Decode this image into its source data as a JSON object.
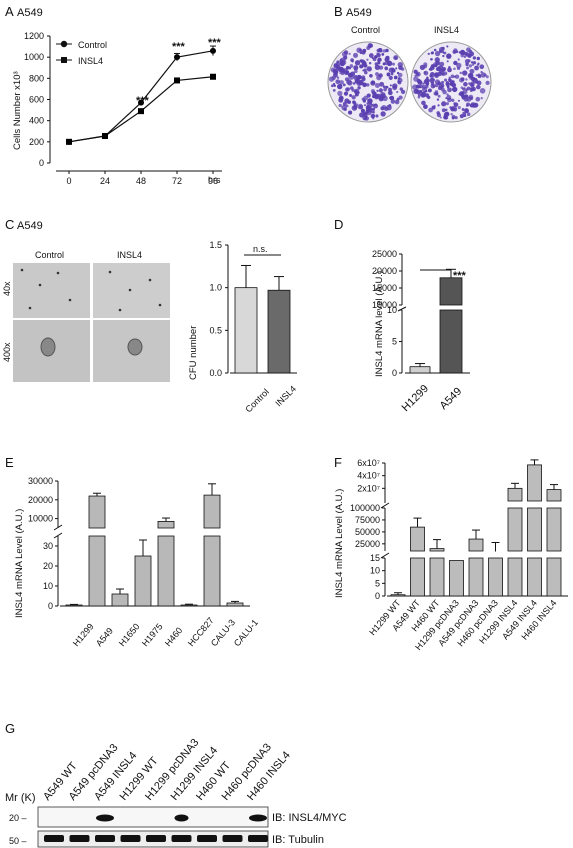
{
  "panels": {
    "A": {
      "label": "A",
      "cell": "A549",
      "ylabel": "Cells Number x10³",
      "xunit": "hrs",
      "legend": [
        "Control",
        "INSL4"
      ],
      "sig": [
        "***",
        "***",
        "***"
      ]
    },
    "B": {
      "label": "B",
      "cell": "A549",
      "dishes": [
        "Control",
        "INSL4"
      ]
    },
    "C": {
      "label": "C",
      "cell": "A549",
      "cols": [
        "Control",
        "INSL4"
      ],
      "rows": [
        "40x",
        "400x"
      ],
      "bar_ylabel": "CFU number",
      "bar_cats": [
        "Control",
        "INSL4"
      ],
      "sig": "n.s."
    },
    "D": {
      "label": "D",
      "ylabel": "INSL4 mRNA level (A.U.)",
      "cats": [
        "H1299",
        "A549"
      ],
      "sig": "***"
    },
    "E": {
      "label": "E",
      "ylabel": "INSL4 mRNA Level (A.U.)",
      "cats": [
        "H1299",
        "A549",
        "H1650",
        "H1975",
        "H460",
        "HCC827",
        "CALU-3",
        "CALU-1"
      ]
    },
    "F": {
      "label": "F",
      "ylabel": "INSL4 mRNA Level (A.U.)",
      "cats": [
        "H1299 WT",
        "A549 WT",
        "H460 WT",
        "H1299 pcDNA3",
        "A549 pcDNA3",
        "H460 pcDNA3",
        "H1299 INSL4",
        "A549 INSL4",
        "H460 INSL4"
      ]
    },
    "G": {
      "label": "G",
      "lanes": [
        "A549 WT",
        "A549 pcDNA3",
        "A549 INSL4",
        "H1299 WT",
        "H1299 pcDNA3",
        "H1299 INSL4",
        "H460 WT",
        "H460 pcDNA3",
        "H460 INSL4"
      ],
      "mr": "Mr (K)",
      "markers": [
        "20 –",
        "50 –"
      ],
      "blots": [
        "IB: INSL4/MYC",
        "IB: Tubulin"
      ]
    }
  },
  "chart_data": [
    {
      "type": "line",
      "panel": "A",
      "x": [
        0,
        24,
        48,
        72,
        96
      ],
      "xlabel": "hrs",
      "ylabel": "Cells Number x10³",
      "ylim": [
        0,
        1200
      ],
      "yticks": [
        0,
        200,
        400,
        600,
        800,
        1000,
        1200
      ],
      "series": [
        {
          "name": "Control",
          "values": [
            200,
            255,
            570,
            1000,
            1060
          ]
        },
        {
          "name": "INSL4",
          "values": [
            200,
            255,
            490,
            780,
            815
          ]
        }
      ]
    },
    {
      "type": "bar",
      "panel": "C",
      "categories": [
        "Control",
        "INSL4"
      ],
      "values": [
        1.0,
        0.97
      ],
      "errors": [
        0.26,
        0.16
      ],
      "ylabel": "CFU number",
      "ylim": [
        0,
        1.5
      ],
      "yticks": [
        "0.0",
        "0.5",
        "1.0",
        "1.5"
      ]
    },
    {
      "type": "bar",
      "panel": "D",
      "categories": [
        "H1299",
        "A549"
      ],
      "values": [
        1.0,
        18000
      ],
      "errors": [
        0.5,
        2500
      ],
      "ylabel": "INSL4 mRNA level (A.U.)",
      "yticks": [
        "0",
        "5",
        "10",
        "10000",
        "15000",
        "20000",
        "25000"
      ]
    },
    {
      "type": "bar",
      "panel": "E",
      "categories": [
        "H1299",
        "A549",
        "H1650",
        "H1975",
        "H460",
        "HCC827",
        "CALU-3",
        "CALU-1"
      ],
      "values": [
        0.5,
        22000,
        6,
        25,
        8500,
        0.5,
        22500,
        1.5
      ],
      "errors": [
        0.3,
        1500,
        2.5,
        8,
        1800,
        0.4,
        6000,
        0.8
      ],
      "ylabel": "INSL4 mRNA Level (A.U.)",
      "yticks": [
        "0",
        "10",
        "20",
        "30",
        "10000",
        "20000",
        "30000"
      ]
    },
    {
      "type": "bar",
      "panel": "F",
      "categories": [
        "H1299 WT",
        "A549 WT",
        "H460 WT",
        "H1299 pcDNA3",
        "A549 pcDNA3",
        "H460 pcDNA3",
        "H1299 INSL4",
        "A549 INSL4",
        "H460 INSL4"
      ],
      "values": [
        0.5,
        60000,
        15000,
        14,
        35000,
        9000,
        20000000,
        57000000,
        18000000
      ],
      "ylabel": "INSL4 mRNA Level (A.U.)",
      "yticks": [
        "0",
        "5",
        "10",
        "15",
        "25000",
        "50000",
        "75000",
        "100000",
        "2x10⁷",
        "4x10⁷",
        "6x10⁷"
      ]
    }
  ]
}
